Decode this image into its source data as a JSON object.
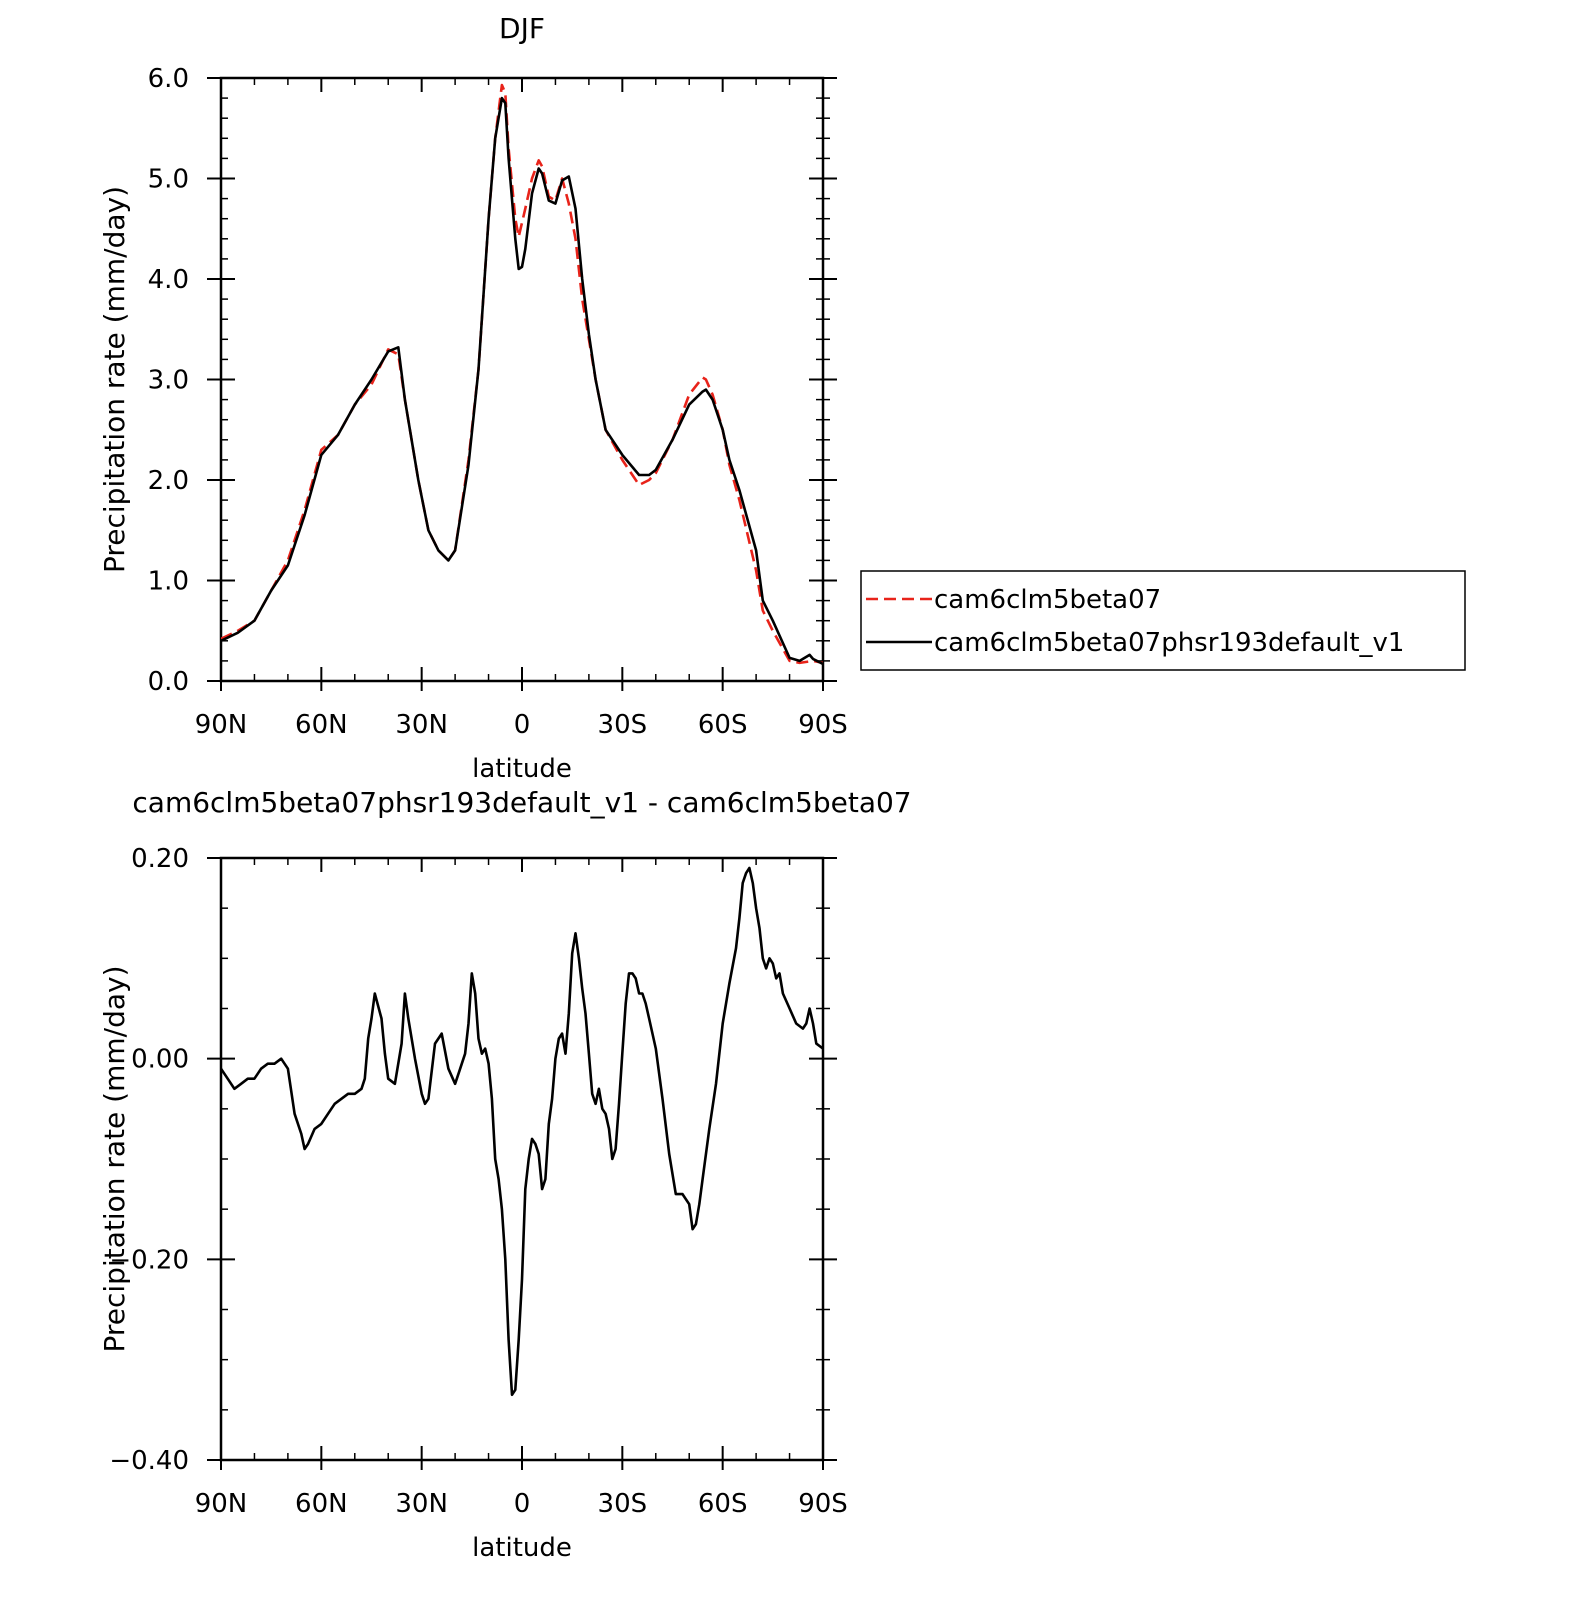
{
  "chart_data": [
    {
      "type": "line",
      "title": "DJF",
      "xlabel": "latitude",
      "ylabel": "Precipitation rate (mm/day)",
      "xlim": [
        90,
        -90
      ],
      "ylim": [
        0.0,
        6.0
      ],
      "xticks": [
        90,
        60,
        30,
        0,
        -30,
        -60,
        -90
      ],
      "xtick_labels": [
        "90N",
        "60N",
        "30N",
        "0",
        "30S",
        "60S",
        "90S"
      ],
      "yticks": [
        0.0,
        1.0,
        2.0,
        3.0,
        4.0,
        5.0,
        6.0
      ],
      "ytick_labels": [
        "0.0",
        "1.0",
        "2.0",
        "3.0",
        "4.0",
        "5.0",
        "6.0"
      ],
      "legend": "right",
      "series": [
        {
          "name": "cam6clm5beta07",
          "color": "#e8231a",
          "dash": "dashed",
          "x": [
            90,
            85,
            80,
            75,
            70,
            65,
            60,
            55,
            50,
            45,
            40,
            37,
            35,
            31,
            28,
            25,
            22,
            20,
            16,
            13,
            10,
            8,
            6,
            5,
            4,
            2,
            1,
            -1,
            -3,
            -5,
            -6,
            -8,
            -10,
            -12,
            -14,
            -16,
            -18,
            -20,
            -22,
            -25,
            -30,
            -35,
            -38,
            -40,
            -45,
            -50,
            -54,
            -55,
            -57,
            -60,
            -62,
            -65,
            -70,
            -72,
            -75,
            -80,
            -83,
            -87,
            -90
          ],
          "y": [
            0.42,
            0.5,
            0.6,
            0.9,
            1.2,
            1.7,
            2.3,
            2.45,
            2.75,
            2.95,
            3.3,
            3.25,
            2.8,
            2.0,
            1.5,
            1.3,
            1.2,
            1.3,
            2.2,
            3.1,
            4.6,
            5.4,
            5.93,
            5.85,
            5.3,
            4.6,
            4.42,
            4.7,
            5.0,
            5.18,
            5.12,
            4.82,
            4.78,
            5.0,
            4.75,
            4.4,
            3.8,
            3.4,
            3.0,
            2.5,
            2.2,
            1.95,
            2.0,
            2.07,
            2.4,
            2.85,
            3.02,
            3.0,
            2.85,
            2.5,
            2.15,
            1.8,
            1.1,
            0.7,
            0.5,
            0.2,
            0.18,
            0.2,
            0.18
          ]
        },
        {
          "name": "cam6clm5beta07phsr193default_v1",
          "color": "#000000",
          "dash": "solid",
          "x": [
            90,
            85,
            80,
            75,
            70,
            65,
            60,
            55,
            50,
            45,
            40,
            37,
            35,
            31,
            28,
            25,
            22,
            20,
            16,
            13,
            10,
            8,
            6,
            5,
            4,
            2,
            1,
            0,
            -1,
            -3,
            -5,
            -6,
            -8,
            -10,
            -12,
            -14,
            -16,
            -18,
            -20,
            -22,
            -25,
            -30,
            -35,
            -38,
            -40,
            -45,
            -50,
            -54,
            -55,
            -57,
            -60,
            -62,
            -65,
            -70,
            -72,
            -75,
            -80,
            -83,
            -86,
            -87,
            -90
          ],
          "y": [
            0.4,
            0.48,
            0.6,
            0.9,
            1.15,
            1.65,
            2.25,
            2.45,
            2.75,
            3.0,
            3.28,
            3.32,
            2.8,
            2.0,
            1.5,
            1.3,
            1.2,
            1.3,
            2.15,
            3.1,
            4.6,
            5.4,
            5.8,
            5.75,
            5.2,
            4.4,
            4.1,
            4.12,
            4.3,
            4.85,
            5.1,
            5.05,
            4.78,
            4.75,
            4.98,
            5.02,
            4.7,
            4.0,
            3.45,
            3.0,
            2.5,
            2.25,
            2.05,
            2.05,
            2.1,
            2.4,
            2.75,
            2.88,
            2.9,
            2.8,
            2.5,
            2.2,
            1.9,
            1.3,
            0.8,
            0.6,
            0.23,
            0.2,
            0.26,
            0.22,
            0.17
          ]
        }
      ]
    },
    {
      "type": "line",
      "title": "cam6clm5beta07phsr193default_v1 - cam6clm5beta07",
      "xlabel": "latitude",
      "ylabel": "Precipitation rate (mm/day)",
      "xlim": [
        90,
        -90
      ],
      "ylim": [
        -0.4,
        0.2
      ],
      "xticks": [
        90,
        60,
        30,
        0,
        -30,
        -60,
        -90
      ],
      "xtick_labels": [
        "90N",
        "60N",
        "30N",
        "0",
        "30S",
        "60S",
        "90S"
      ],
      "yticks": [
        -0.4,
        -0.2,
        0.0,
        0.2
      ],
      "ytick_labels": [
        "−0.40",
        "−0.20",
        "0.00",
        "0.20"
      ],
      "series": [
        {
          "color": "#000000",
          "dash": "solid",
          "x": [
            90,
            88,
            86,
            84,
            82,
            80,
            78,
            76,
            74,
            72,
            70,
            68,
            66,
            65,
            64,
            62,
            60,
            58,
            56,
            54,
            52,
            50,
            48,
            47,
            46,
            45,
            44,
            42,
            41,
            40,
            38,
            36,
            35,
            34,
            32,
            30,
            29,
            28,
            26,
            24,
            22,
            20,
            19,
            18,
            17,
            16,
            15,
            14,
            13,
            12,
            11,
            10,
            9,
            8,
            7,
            6,
            5,
            4,
            3,
            2,
            1,
            0,
            -1,
            -2,
            -3,
            -4,
            -5,
            -6,
            -7,
            -8,
            -9,
            -10,
            -11,
            -12,
            -13,
            -14,
            -15,
            -16,
            -17,
            -18,
            -19,
            -20,
            -21,
            -22,
            -23,
            -24,
            -25,
            -26,
            -27,
            -28,
            -29,
            -30,
            -31,
            -32,
            -33,
            -34,
            -35,
            -36,
            -37,
            -38,
            -40,
            -42,
            -44,
            -46,
            -48,
            -50,
            -51,
            -52,
            -53,
            -54,
            -56,
            -58,
            -60,
            -62,
            -64,
            -65,
            -66,
            -67,
            -68,
            -69,
            -70,
            -71,
            -72,
            -73,
            -74,
            -75,
            -76,
            -77,
            -78,
            -80,
            -82,
            -84,
            -85,
            -86,
            -87,
            -88,
            -90
          ],
          "y": [
            -0.01,
            -0.02,
            -0.03,
            -0.025,
            -0.02,
            -0.02,
            -0.01,
            -0.005,
            -0.005,
            0.0,
            -0.01,
            -0.055,
            -0.075,
            -0.09,
            -0.085,
            -0.07,
            -0.065,
            -0.055,
            -0.045,
            -0.04,
            -0.035,
            -0.035,
            -0.03,
            -0.02,
            0.02,
            0.04,
            0.065,
            0.04,
            0.005,
            -0.02,
            -0.025,
            0.015,
            0.065,
            0.04,
            0.0,
            -0.035,
            -0.045,
            -0.04,
            0.015,
            0.025,
            -0.01,
            -0.025,
            -0.015,
            -0.005,
            0.005,
            0.035,
            0.085,
            0.065,
            0.02,
            0.005,
            0.01,
            -0.005,
            -0.04,
            -0.1,
            -0.12,
            -0.15,
            -0.2,
            -0.28,
            -0.335,
            -0.33,
            -0.28,
            -0.22,
            -0.13,
            -0.1,
            -0.08,
            -0.085,
            -0.095,
            -0.13,
            -0.12,
            -0.065,
            -0.04,
            0.0,
            0.02,
            0.025,
            0.005,
            0.045,
            0.105,
            0.125,
            0.1,
            0.07,
            0.045,
            0.005,
            -0.035,
            -0.045,
            -0.03,
            -0.05,
            -0.055,
            -0.07,
            -0.1,
            -0.09,
            -0.045,
            0.005,
            0.055,
            0.085,
            0.085,
            0.08,
            0.065,
            0.065,
            0.055,
            0.04,
            0.01,
            -0.04,
            -0.095,
            -0.135,
            -0.135,
            -0.145,
            -0.17,
            -0.165,
            -0.145,
            -0.12,
            -0.07,
            -0.025,
            0.035,
            0.075,
            0.11,
            0.14,
            0.175,
            0.185,
            0.19,
            0.175,
            0.15,
            0.13,
            0.1,
            0.09,
            0.1,
            0.095,
            0.08,
            0.085,
            0.065,
            0.05,
            0.035,
            0.03,
            0.035,
            0.05,
            0.035,
            0.015,
            0.01
          ]
        }
      ]
    }
  ]
}
